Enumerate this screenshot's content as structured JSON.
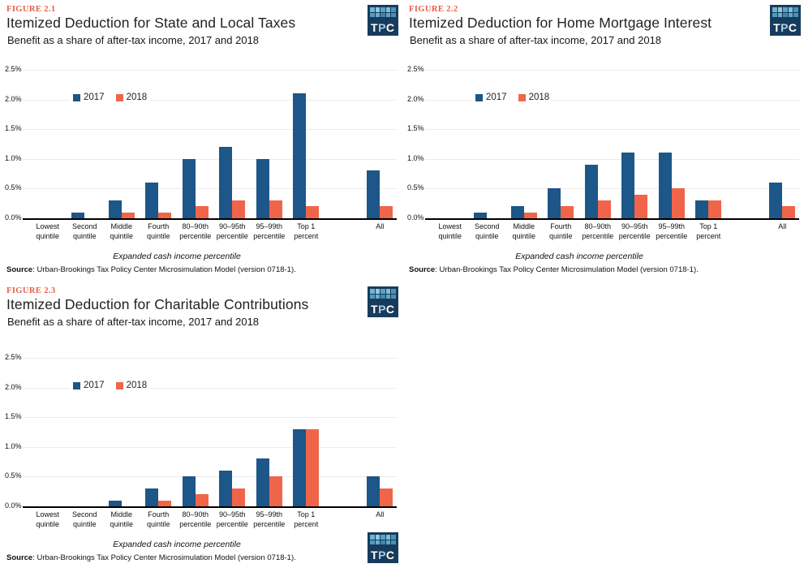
{
  "logo": {
    "bg": "#173b5c",
    "letters": [
      {
        "ch": "T",
        "color": "#ffffff"
      },
      {
        "ch": "P",
        "color": "#a9cfe0"
      },
      {
        "ch": "C",
        "color": "#ffffff"
      }
    ],
    "mosaic": [
      "#6fb6d2",
      "#8fcadd",
      "#57a4c4",
      "#7fc0d6",
      "#4a93b8",
      "#4f9dc0",
      "#6badc9",
      "#3f87ad",
      "#5ea8c6",
      "#4790b5"
    ]
  },
  "chart_data": [
    {
      "type": "bar",
      "figure_label": "FIGURE 2.1",
      "title": "Itemized Deduction for State and Local Taxes",
      "subtitle": "Benefit as a share of after-tax income, 2017 and 2018",
      "categories": [
        "Lowest quintile",
        "Second quintile",
        "Middle quintile",
        "Fourth quintile",
        "80–90th percentile",
        "90–95th percentile",
        "95–99th percentile",
        "Top 1 percent",
        "All"
      ],
      "categories_lines": [
        [
          "Lowest",
          "quintile"
        ],
        [
          "Second",
          "quintile"
        ],
        [
          "Middle",
          "quintile"
        ],
        [
          "Fourth",
          "quintile"
        ],
        [
          "80–90th",
          "percentile"
        ],
        [
          "90–95th",
          "percentile"
        ],
        [
          "95–99th",
          "percentile"
        ],
        [
          "Top 1",
          "percent"
        ],
        [
          "All"
        ]
      ],
      "series": [
        {
          "name": "2017",
          "color": "#1d5688",
          "values": [
            0.0,
            0.1,
            0.3,
            0.6,
            1.0,
            1.2,
            1.0,
            2.1,
            0.8
          ]
        },
        {
          "name": "2018",
          "color": "#f0654a",
          "values": [
            0.0,
            0.0,
            0.1,
            0.1,
            0.2,
            0.3,
            0.3,
            0.2,
            0.2
          ]
        }
      ],
      "ylim": [
        0,
        2.5
      ],
      "ytick_step": 0.5,
      "yticks": [
        "0.0%",
        "0.5%",
        "1.0%",
        "1.5%",
        "2.0%",
        "2.5%"
      ],
      "xlabel": "Expanded cash income percentile",
      "legend_position": "top-left-inside",
      "grid": true,
      "source_label": "Source",
      "source_text": ": Urban-Brookings Tax Policy Center Microsimulation Model (version 0718-1)."
    },
    {
      "type": "bar",
      "figure_label": "FIGURE 2.2",
      "title": "Itemized Deduction for Home Mortgage Interest",
      "subtitle": "Benefit as a share of after-tax income, 2017 and 2018",
      "categories": [
        "Lowest quintile",
        "Second quintile",
        "Middle quintile",
        "Fourth quintile",
        "80–90th percentile",
        "90–95th percentile",
        "95–99th percentile",
        "Top 1 percent",
        "All"
      ],
      "categories_lines": [
        [
          "Lowest",
          "quintile"
        ],
        [
          "Second",
          "quintile"
        ],
        [
          "Middle",
          "quintile"
        ],
        [
          "Fourth",
          "quintile"
        ],
        [
          "80–90th",
          "percentile"
        ],
        [
          "90–95th",
          "percentile"
        ],
        [
          "95–99th",
          "percentile"
        ],
        [
          "Top 1",
          "percent"
        ],
        [
          "All"
        ]
      ],
      "series": [
        {
          "name": "2017",
          "color": "#1d5688",
          "values": [
            0.0,
            0.1,
            0.2,
            0.5,
            0.9,
            1.1,
            1.1,
            0.3,
            0.6
          ]
        },
        {
          "name": "2018",
          "color": "#f0654a",
          "values": [
            0.0,
            0.0,
            0.1,
            0.2,
            0.3,
            0.4,
            0.5,
            0.3,
            0.2
          ]
        }
      ],
      "ylim": [
        0,
        2.5
      ],
      "ytick_step": 0.5,
      "yticks": [
        "0.0%",
        "0.5%",
        "1.0%",
        "1.5%",
        "2.0%",
        "2.5%"
      ],
      "xlabel": "Expanded cash income percentile",
      "legend_position": "top-left-inside",
      "grid": true,
      "source_label": "Source",
      "source_text": ": Urban-Brookings Tax Policy Center Microsimulation Model (version 0718-1)."
    },
    {
      "type": "bar",
      "figure_label": "FIGURE 2.3",
      "title": "Itemized Deduction for Charitable Contributions",
      "subtitle": "Benefit as a share of after-tax income, 2017 and 2018",
      "categories": [
        "Lowest quintile",
        "Second quintile",
        "Middle quintile",
        "Fourth quintile",
        "80–90th percentile",
        "90–95th percentile",
        "95–99th percentile",
        "Top 1 percent",
        "All"
      ],
      "categories_lines": [
        [
          "Lowest",
          "quintile"
        ],
        [
          "Second",
          "quintile"
        ],
        [
          "Middle",
          "quintile"
        ],
        [
          "Fourth",
          "quintile"
        ],
        [
          "80–90th",
          "percentile"
        ],
        [
          "90–95th",
          "percentile"
        ],
        [
          "95–99th",
          "percentile"
        ],
        [
          "Top 1",
          "percent"
        ],
        [
          "All"
        ]
      ],
      "series": [
        {
          "name": "2017",
          "color": "#1d5688",
          "values": [
            0.0,
            0.0,
            0.1,
            0.3,
            0.5,
            0.6,
            0.8,
            1.3,
            0.5
          ]
        },
        {
          "name": "2018",
          "color": "#f0654a",
          "values": [
            0.0,
            0.0,
            0.0,
            0.1,
            0.2,
            0.3,
            0.5,
            1.3,
            0.3
          ]
        }
      ],
      "ylim": [
        0,
        2.5
      ],
      "ytick_step": 0.5,
      "yticks": [
        "0.0%",
        "0.5%",
        "1.0%",
        "1.5%",
        "2.0%",
        "2.5%"
      ],
      "xlabel": "Expanded cash income percentile",
      "legend_position": "top-left-inside",
      "grid": true,
      "source_label": "Source",
      "source_text": ": Urban-Brookings Tax Policy Center Microsimulation Model (version 0718-1)."
    }
  ]
}
